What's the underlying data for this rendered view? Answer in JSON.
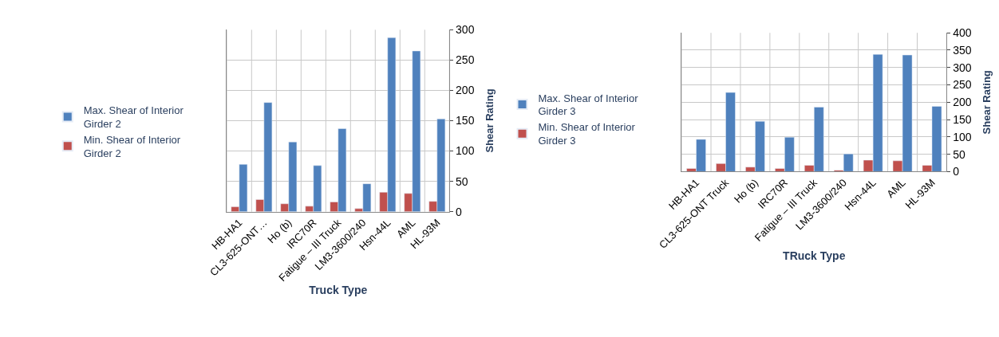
{
  "chart_data": [
    {
      "type": "bar",
      "xlabel": "Truck Type",
      "ylabel": "Shear Rating",
      "categories": [
        "HB-HA1",
        "CL3-625-ONT…",
        "Ho (b)",
        "IRC70R",
        "Fatigue – III Truck",
        "LM3-3600/240",
        "Hsn-44L",
        "AML",
        "HL-93M"
      ],
      "series": [
        {
          "name": "Min. Shear of Interior Girder 2",
          "color": "#c0504d",
          "values": [
            8,
            20,
            13,
            9,
            16,
            5,
            32,
            30,
            17
          ]
        },
        {
          "name": "Max. Shear of Interior Girder 2",
          "color": "#4f81bd",
          "values": [
            78,
            180,
            115,
            76,
            137,
            46,
            287,
            265,
            153
          ]
        }
      ],
      "ylim": [
        0,
        300
      ],
      "yticks": [
        0,
        50,
        100,
        150,
        200,
        250,
        300
      ],
      "grid": true,
      "legend": "left"
    },
    {
      "type": "bar",
      "xlabel": "TRuck Type",
      "ylabel": "Shear Rating",
      "categories": [
        "HB-HA1",
        "CL3-625-ONT Truck",
        "Ho (b)",
        "IRC70R",
        "Fatigue – III Truck",
        "LM3-3600/240",
        "Hsn-44L",
        "AML",
        "HL-93M"
      ],
      "series": [
        {
          "name": "Min. Shear of Interior Girder 3",
          "color": "#c0504d",
          "values": [
            9,
            23,
            13,
            9,
            18,
            4,
            33,
            31,
            18
          ]
        },
        {
          "name": "Max. Shear of Interior Girder 3",
          "color": "#4f81bd",
          "values": [
            93,
            228,
            145,
            99,
            186,
            51,
            338,
            336,
            188
          ]
        }
      ],
      "ylim": [
        0,
        400
      ],
      "yticks": [
        0,
        50,
        100,
        150,
        200,
        250,
        300,
        350,
        400
      ],
      "grid": true,
      "legend": "left"
    }
  ]
}
